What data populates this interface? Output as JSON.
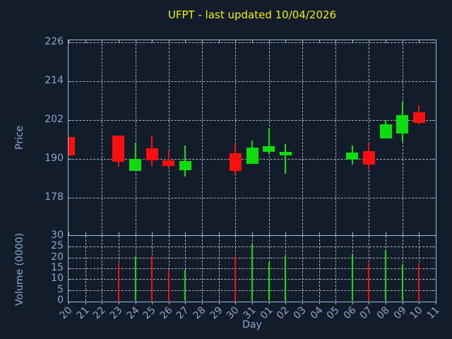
{
  "title": "UFPT - last updated 10/04/2026",
  "colors": {
    "background": "#131c2b",
    "title": "#f0f000",
    "axis_frame": "#9dbbda",
    "grid": "#c3cbd3",
    "tick_label": "#88a8ce",
    "up": "#0ddd0d",
    "down": "#fa0f0f"
  },
  "chart_data": {
    "type": "candlestick",
    "title": "UFPT - last updated 10/04/2026",
    "xlabel": "Day",
    "legend": "none",
    "grid": "dashed",
    "price_axis": {
      "label": "Price",
      "ticks": [
        226,
        214,
        202,
        190,
        178
      ],
      "ylim": [
        166.4,
        226.7
      ]
    },
    "volume_axis": {
      "label": "Volume (0000)",
      "ticks": [
        30,
        25,
        20,
        15,
        10,
        5,
        0
      ],
      "ylim": [
        0,
        30
      ]
    },
    "days": [
      "20",
      "21",
      "22",
      "23",
      "24",
      "25",
      "26",
      "27",
      "28",
      "29",
      "30",
      "31",
      "01",
      "02",
      "03",
      "04",
      "05",
      "06",
      "07",
      "08",
      "09",
      "10",
      "11"
    ],
    "candles": [
      {
        "day": "20",
        "open": 196.7,
        "high": 196.7,
        "low": 191.1,
        "close": 191.1,
        "volume": null,
        "clipped_left": true
      },
      {
        "day": "23",
        "open": 197.2,
        "high": 197.2,
        "low": 187.7,
        "close": 189.2,
        "volume": 17.3
      },
      {
        "day": "24",
        "open": 186.2,
        "high": 195.1,
        "low": 186.2,
        "close": 189.9,
        "volume": 20.5
      },
      {
        "day": "25",
        "open": 193.3,
        "high": 197.1,
        "low": 187.8,
        "close": 189.6,
        "volume": 20.5
      },
      {
        "day": "26",
        "open": 189.6,
        "high": 192.3,
        "low": 186.9,
        "close": 187.8,
        "volume": 14.5
      },
      {
        "day": "27",
        "open": 186.5,
        "high": 194.2,
        "low": 184.6,
        "close": 189.4,
        "volume": 14.5
      },
      {
        "day": "30",
        "open": 191.8,
        "high": 194.9,
        "low": 185.3,
        "close": 186.4,
        "volume": 20.5
      },
      {
        "day": "31",
        "open": 188.5,
        "high": 195.7,
        "low": 188.5,
        "close": 193.6,
        "volume": 26.5
      },
      {
        "day": "01",
        "open": 192.2,
        "high": 199.5,
        "low": 191.5,
        "close": 194.0,
        "volume": 18.0
      },
      {
        "day": "02",
        "open": 191.1,
        "high": 194.5,
        "low": 185.4,
        "close": 192.2,
        "volume": 21.0
      },
      {
        "day": "06",
        "open": 189.8,
        "high": 194.1,
        "low": 188.2,
        "close": 192.0,
        "volume": 21.6
      },
      {
        "day": "07",
        "open": 192.4,
        "high": 194.9,
        "low": 186.7,
        "close": 188.3,
        "volume": 17.3
      },
      {
        "day": "08",
        "open": 196.3,
        "high": 202.1,
        "low": 196.3,
        "close": 200.7,
        "volume": 23.5
      },
      {
        "day": "09",
        "open": 197.8,
        "high": 207.7,
        "low": 195.3,
        "close": 203.6,
        "volume": 16.6
      },
      {
        "day": "10",
        "open": 204.3,
        "high": 206.5,
        "low": 200.8,
        "close": 201.1,
        "volume": 16.8
      }
    ]
  }
}
